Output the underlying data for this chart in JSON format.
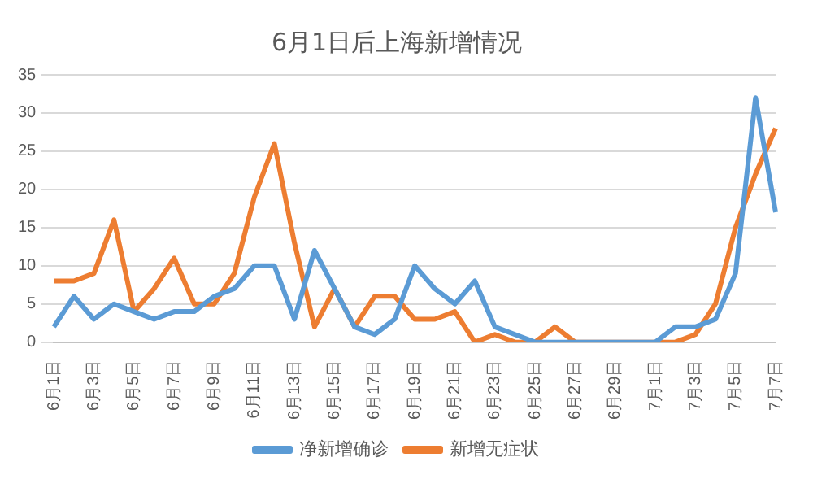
{
  "chart_data": {
    "type": "line",
    "title": "6月1日后上海新增情况",
    "categories": [
      "6月1日",
      null,
      "6月3日",
      null,
      "6月5日",
      null,
      "6月7日",
      null,
      "6月9日",
      null,
      "6月11日",
      null,
      "6月13日",
      null,
      "6月15日",
      null,
      "6月17日",
      null,
      "6月19日",
      null,
      "6月21日",
      null,
      "6月23日",
      null,
      "6月25日",
      null,
      "6月27日",
      null,
      "6月29日",
      null,
      "7月1日",
      null,
      "7月3日",
      null,
      "7月5日",
      null,
      "7月7日"
    ],
    "series": [
      {
        "name": "净新增确诊",
        "color": "#5b9bd5",
        "values": [
          2,
          6,
          3,
          5,
          4,
          3,
          4,
          4,
          6,
          7,
          10,
          10,
          3,
          12,
          7,
          2,
          1,
          3,
          10,
          7,
          5,
          8,
          2,
          1,
          0,
          0,
          0,
          0,
          0,
          0,
          0,
          2,
          2,
          3,
          9,
          32,
          17
        ]
      },
      {
        "name": "新增无症状",
        "color": "#ed7d31",
        "values": [
          8,
          8,
          9,
          16,
          4,
          7,
          11,
          5,
          5,
          9,
          19,
          26,
          13,
          2,
          7,
          2,
          6,
          6,
          3,
          3,
          4,
          0,
          1,
          0,
          0,
          2,
          0,
          0,
          0,
          0,
          0,
          0,
          1,
          5,
          15,
          22,
          28
        ]
      }
    ],
    "ylim": [
      0,
      35
    ],
    "yticks": [
      0,
      5,
      10,
      15,
      20,
      25,
      30,
      35
    ],
    "grid": "y",
    "legend": "bottom",
    "marker": "none",
    "line_style": "solid"
  }
}
